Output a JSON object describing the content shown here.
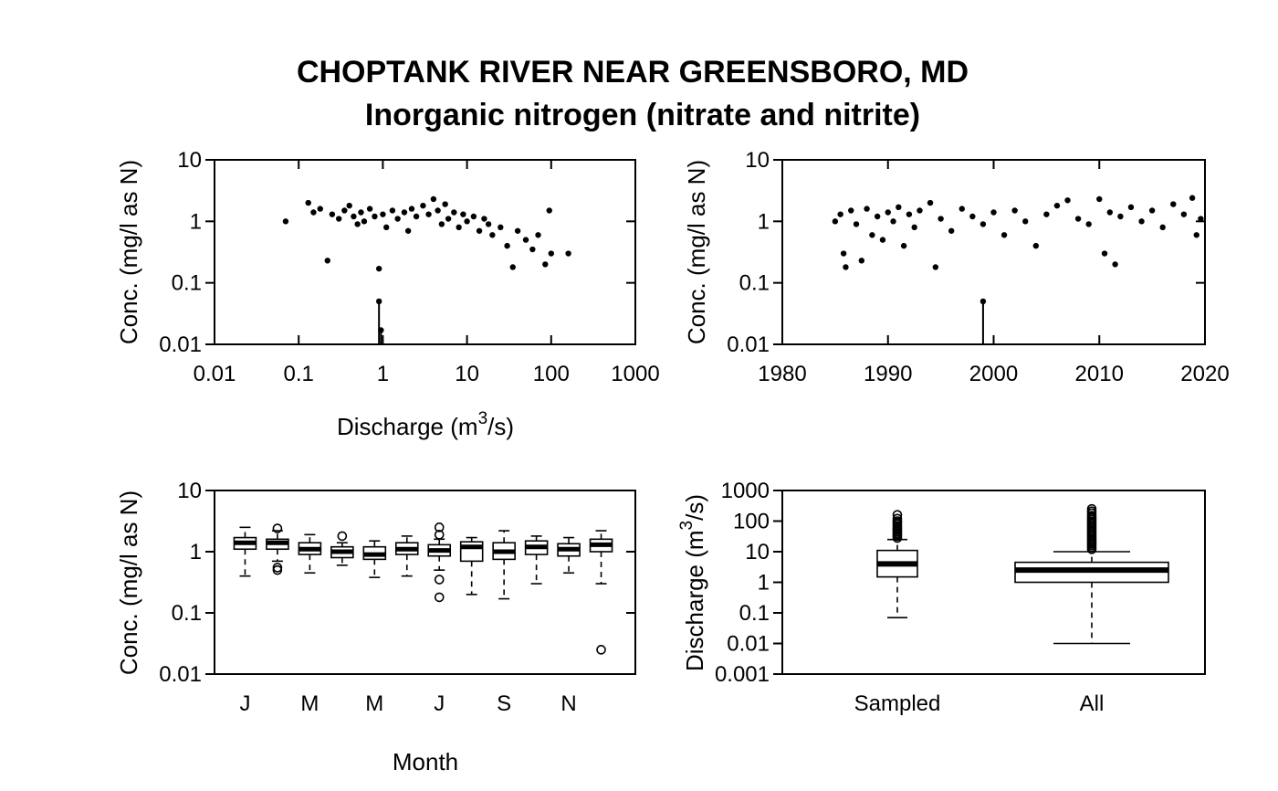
{
  "figure": {
    "title_line1": "CHOPTANK RIVER NEAR GREENSBORO, MD",
    "title_line2": "Inorganic nitrogen (nitrate and nitrite)"
  },
  "chart_data": [
    {
      "id": "conc_vs_discharge",
      "type": "scatter",
      "xlabel_main": "Discharge (m",
      "xlabel_sup": "3",
      "xlabel_end": "/s)",
      "ylabel": "Conc. (mg/l as N)",
      "x_log": true,
      "y_log": true,
      "xlim": [
        0.01,
        1000
      ],
      "ylim": [
        0.01,
        10
      ],
      "x_ticks": [
        "0.01",
        "0.1",
        "1",
        "10",
        "100",
        "1000"
      ],
      "y_ticks": [
        "0.01",
        "0.1",
        "1",
        "10"
      ],
      "points": [
        [
          0.07,
          1.0
        ],
        [
          0.13,
          2.0
        ],
        [
          0.15,
          1.4
        ],
        [
          0.18,
          1.6
        ],
        [
          0.22,
          0.23
        ],
        [
          0.25,
          1.3
        ],
        [
          0.3,
          1.1
        ],
        [
          0.35,
          1.5
        ],
        [
          0.4,
          1.8
        ],
        [
          0.45,
          1.2
        ],
        [
          0.5,
          0.9
        ],
        [
          0.55,
          1.4
        ],
        [
          0.6,
          1.0
        ],
        [
          0.7,
          1.6
        ],
        [
          0.8,
          1.2
        ],
        [
          0.9,
          0.17
        ],
        [
          1.0,
          1.3
        ],
        [
          1.1,
          0.8
        ],
        [
          1.3,
          1.5
        ],
        [
          1.5,
          1.1
        ],
        [
          1.8,
          1.4
        ],
        [
          2.0,
          0.7
        ],
        [
          2.2,
          1.6
        ],
        [
          2.5,
          1.2
        ],
        [
          3.0,
          1.8
        ],
        [
          3.5,
          1.3
        ],
        [
          4.0,
          2.3
        ],
        [
          4.5,
          1.5
        ],
        [
          5.0,
          0.9
        ],
        [
          5.5,
          1.9
        ],
        [
          6.0,
          1.1
        ],
        [
          7.0,
          1.4
        ],
        [
          8.0,
          0.8
        ],
        [
          9.0,
          1.3
        ],
        [
          10.0,
          1.0
        ],
        [
          12.0,
          1.2
        ],
        [
          14.0,
          0.7
        ],
        [
          16.0,
          1.1
        ],
        [
          18.0,
          0.9
        ],
        [
          20.0,
          0.6
        ],
        [
          25.0,
          0.8
        ],
        [
          30.0,
          0.4
        ],
        [
          35.0,
          0.18
        ],
        [
          40.0,
          0.7
        ],
        [
          50.0,
          0.5
        ],
        [
          60.0,
          0.35
        ],
        [
          70.0,
          0.6
        ],
        [
          85.0,
          0.2
        ],
        [
          95.0,
          1.5
        ],
        [
          100.0,
          0.3
        ],
        [
          160.0,
          0.3
        ]
      ],
      "censored": [
        {
          "x": 0.9,
          "y": 0.05
        },
        {
          "x": 0.95,
          "y": 0.017
        }
      ]
    },
    {
      "id": "conc_vs_time",
      "type": "scatter",
      "xlabel": "",
      "ylabel": "Conc. (mg/l as N)",
      "x_log": false,
      "y_log": true,
      "xlim": [
        1980,
        2020
      ],
      "ylim": [
        0.01,
        10
      ],
      "x_ticks": [
        "1980",
        "1990",
        "2000",
        "2010",
        "2020"
      ],
      "y_ticks": [
        "0.01",
        "0.1",
        "1",
        "10"
      ],
      "points": [
        [
          1985.0,
          1.0
        ],
        [
          1985.5,
          1.3
        ],
        [
          1985.8,
          0.3
        ],
        [
          1986.0,
          0.18
        ],
        [
          1986.5,
          1.5
        ],
        [
          1987.0,
          0.9
        ],
        [
          1987.5,
          0.23
        ],
        [
          1988.0,
          1.6
        ],
        [
          1988.5,
          0.6
        ],
        [
          1989.0,
          1.2
        ],
        [
          1989.5,
          0.5
        ],
        [
          1990.0,
          1.4
        ],
        [
          1990.5,
          1.0
        ],
        [
          1991.0,
          1.7
        ],
        [
          1991.5,
          0.4
        ],
        [
          1992.0,
          1.3
        ],
        [
          1992.5,
          0.8
        ],
        [
          1993.0,
          1.5
        ],
        [
          1994.0,
          2.0
        ],
        [
          1994.5,
          0.18
        ],
        [
          1995.0,
          1.1
        ],
        [
          1996.0,
          0.7
        ],
        [
          1997.0,
          1.6
        ],
        [
          1998.0,
          1.2
        ],
        [
          1999.0,
          0.9
        ],
        [
          2000.0,
          1.4
        ],
        [
          2001.0,
          0.6
        ],
        [
          2002.0,
          1.5
        ],
        [
          2003.0,
          1.0
        ],
        [
          2004.0,
          0.4
        ],
        [
          2005.0,
          1.3
        ],
        [
          2006.0,
          1.8
        ],
        [
          2007.0,
          2.2
        ],
        [
          2008.0,
          1.1
        ],
        [
          2009.0,
          0.9
        ],
        [
          2010.0,
          2.3
        ],
        [
          2010.5,
          0.3
        ],
        [
          2011.0,
          1.4
        ],
        [
          2011.5,
          0.2
        ],
        [
          2012.0,
          1.2
        ],
        [
          2013.0,
          1.7
        ],
        [
          2014.0,
          1.0
        ],
        [
          2015.0,
          1.5
        ],
        [
          2016.0,
          0.8
        ],
        [
          2017.0,
          1.9
        ],
        [
          2018.0,
          1.3
        ],
        [
          2018.8,
          2.4
        ],
        [
          2019.2,
          0.6
        ],
        [
          2019.6,
          1.1
        ]
      ],
      "censored": [
        {
          "x": 1999.0,
          "y": 0.05
        }
      ]
    },
    {
      "id": "conc_by_month",
      "type": "boxplot",
      "xlabel": "Month",
      "ylabel": "Conc. (mg/l as N)",
      "y_log": true,
      "ylim": [
        0.01,
        10
      ],
      "y_ticks": [
        "0.01",
        "0.1",
        "1",
        "10"
      ],
      "x_ticks": [
        "J",
        "M",
        "M",
        "J",
        "S",
        "N"
      ],
      "boxes": [
        {
          "wlo": 0.4,
          "q1": 1.1,
          "med": 1.4,
          "q3": 1.7,
          "whi": 2.5,
          "out": []
        },
        {
          "wlo": 0.7,
          "q1": 1.1,
          "med": 1.4,
          "q3": 1.6,
          "whi": 2.2,
          "out": [
            0.5,
            0.55,
            2.4
          ]
        },
        {
          "wlo": 0.45,
          "q1": 0.9,
          "med": 1.1,
          "q3": 1.4,
          "whi": 1.9,
          "out": []
        },
        {
          "wlo": 0.6,
          "q1": 0.8,
          "med": 1.0,
          "q3": 1.2,
          "whi": 1.4,
          "out": [
            1.8
          ]
        },
        {
          "wlo": 0.38,
          "q1": 0.75,
          "med": 0.9,
          "q3": 1.2,
          "whi": 1.5,
          "out": []
        },
        {
          "wlo": 0.4,
          "q1": 0.9,
          "med": 1.1,
          "q3": 1.4,
          "whi": 1.8,
          "out": []
        },
        {
          "wlo": 0.5,
          "q1": 0.85,
          "med": 1.05,
          "q3": 1.3,
          "whi": 1.6,
          "out": [
            0.35,
            0.18,
            1.9,
            2.5
          ]
        },
        {
          "wlo": 0.2,
          "q1": 0.7,
          "med": 1.2,
          "q3": 1.45,
          "whi": 1.7,
          "out": []
        },
        {
          "wlo": 0.17,
          "q1": 0.75,
          "med": 1.0,
          "q3": 1.4,
          "whi": 2.2,
          "out": []
        },
        {
          "wlo": 0.3,
          "q1": 0.9,
          "med": 1.2,
          "q3": 1.5,
          "whi": 1.8,
          "out": []
        },
        {
          "wlo": 0.45,
          "q1": 0.85,
          "med": 1.1,
          "q3": 1.35,
          "whi": 1.7,
          "out": []
        },
        {
          "wlo": 0.3,
          "q1": 1.0,
          "med": 1.3,
          "q3": 1.6,
          "whi": 2.2,
          "out": [
            0.025
          ]
        }
      ]
    },
    {
      "id": "discharge_sampled_vs_all",
      "type": "boxplot",
      "ylabel_main": "Discharge (m",
      "ylabel_sup": "3",
      "ylabel_end": "/s)",
      "y_log": true,
      "ylim": [
        0.001,
        1000
      ],
      "y_ticks": [
        "0.001",
        "0.01",
        "0.1",
        "1",
        "10",
        "100",
        "1000"
      ],
      "categories": [
        "Sampled",
        "All"
      ],
      "boxes": [
        {
          "wlo": 0.07,
          "q1": 1.5,
          "med": 4.0,
          "q3": 11.0,
          "whi": 25.0,
          "out": [
            28,
            32,
            36,
            40,
            45,
            50,
            55,
            60,
            70,
            80,
            90,
            100,
            120,
            160
          ]
        },
        {
          "wlo": 0.01,
          "q1": 1.0,
          "med": 2.5,
          "q3": 4.5,
          "whi": 10.0,
          "out": [
            12,
            14,
            16,
            18,
            20,
            23,
            26,
            30,
            34,
            38,
            43,
            48,
            55,
            62,
            70,
            80,
            90,
            100,
            115,
            130,
            150,
            180,
            210,
            250
          ]
        }
      ]
    }
  ]
}
